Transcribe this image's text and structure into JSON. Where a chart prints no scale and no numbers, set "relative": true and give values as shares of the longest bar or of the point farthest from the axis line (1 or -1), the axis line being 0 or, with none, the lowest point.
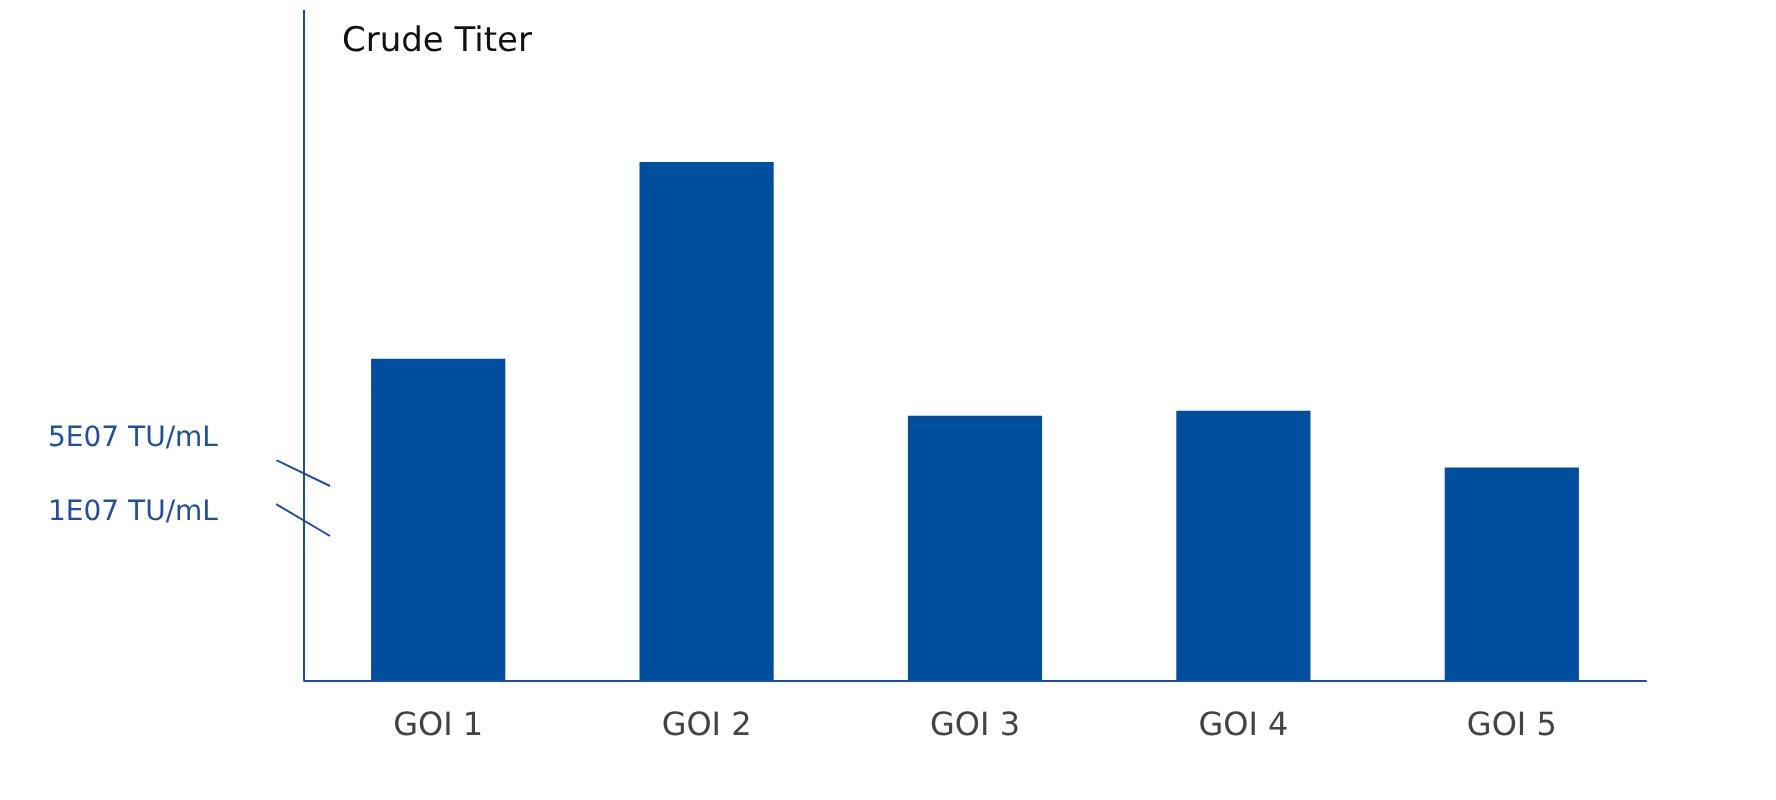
{
  "chart_data": {
    "type": "bar",
    "title": "Crude Titer",
    "relative": true,
    "categories": [
      "GOI 1",
      "GOI 2",
      "GOI 3",
      "GOI 4",
      "GOI 5"
    ],
    "values": [
      0.62,
      1,
      0.51,
      0.52,
      0.41
    ],
    "color": "#004f9f",
    "annotations": [
      "5E07 TU/mL",
      "1E07 TU/mL"
    ]
  }
}
